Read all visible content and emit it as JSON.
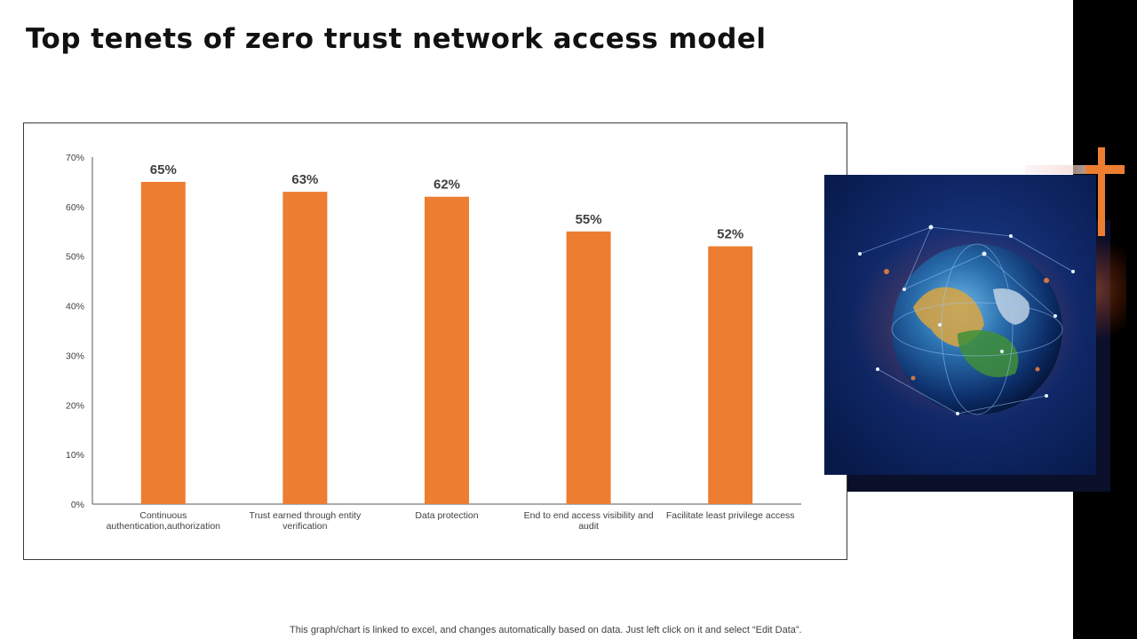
{
  "title": "Top tenets of zero trust network access model",
  "footnote": "This graph/chart is linked to excel,  and changes automatically based on data. Just left click on it and select “Edit Data”.",
  "colors": {
    "bar": "#ED7D31",
    "accent_bar": "#000000",
    "cross": "#ED7D31"
  },
  "image": {
    "subject": "globe-network-image"
  },
  "chart_data": {
    "type": "bar",
    "categories": [
      [
        "Continuous",
        "authentication,authorization"
      ],
      [
        "Trust earned through  entity",
        "verification"
      ],
      [
        "Data protection"
      ],
      [
        "End to end access visibility and",
        "audit"
      ],
      [
        "Facilitate least privilege access"
      ]
    ],
    "values": [
      65,
      63,
      62,
      55,
      52
    ],
    "data_labels": [
      "65%",
      "63%",
      "62%",
      "55%",
      "52%"
    ],
    "yticks": [
      "0%",
      "10%",
      "20%",
      "30%",
      "40%",
      "50%",
      "60%",
      "70%"
    ],
    "ylim": [
      0,
      70
    ],
    "grid": false,
    "legend": "none"
  }
}
